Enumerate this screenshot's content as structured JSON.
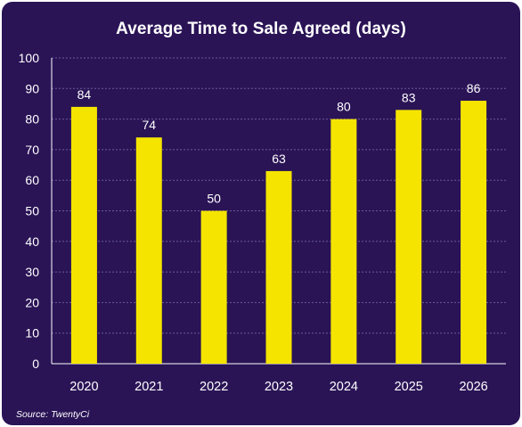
{
  "chart_data": {
    "type": "bar",
    "title": "Average Time to Sale Agreed (days)",
    "categories": [
      "2020",
      "2021",
      "2022",
      "2023",
      "2024",
      "2025",
      "2026"
    ],
    "values": [
      84,
      74,
      50,
      63,
      80,
      83,
      86
    ],
    "ylim": [
      0,
      100
    ],
    "yticks": [
      0,
      10,
      20,
      30,
      40,
      50,
      60,
      70,
      80,
      90,
      100
    ],
    "xlabel": "",
    "ylabel": "",
    "grid": true,
    "data_labels": true,
    "legend": "none"
  },
  "source": "Source: TwentyCi",
  "colors": {
    "background": "#2a1456",
    "bar": "#f5e400",
    "grid": "#6b5a9a",
    "text": "#ffffff"
  }
}
